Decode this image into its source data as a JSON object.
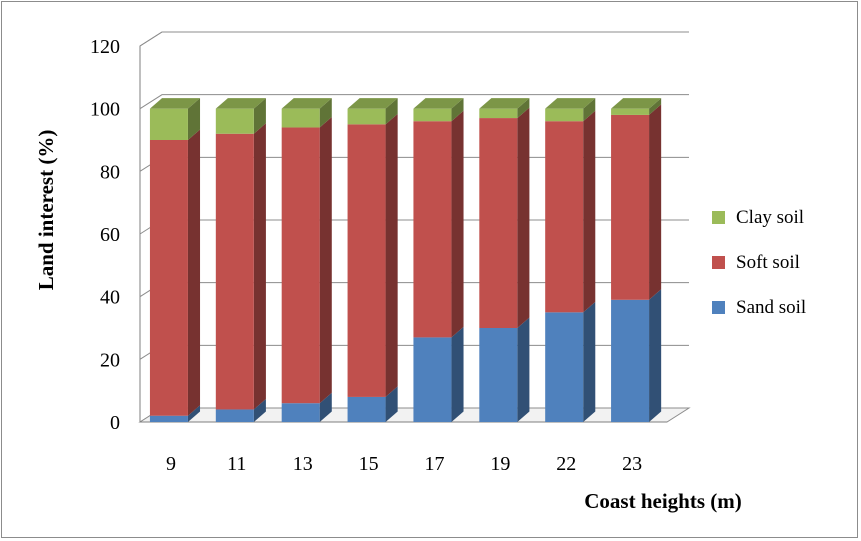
{
  "chart_data": {
    "type": "bar",
    "stacked": true,
    "three_d": true,
    "categories": [
      "9",
      "11",
      "13",
      "15",
      "17",
      "19",
      "22",
      "23"
    ],
    "series": [
      {
        "name": "Sand soil",
        "color": "#4F81BD",
        "values": [
          2,
          4,
          6,
          8,
          27,
          30,
          35,
          39
        ]
      },
      {
        "name": "Soft soil",
        "color": "#C0504D",
        "values": [
          88,
          88,
          88,
          87,
          69,
          67,
          61,
          59
        ]
      },
      {
        "name": "Clay soil",
        "color": "#9BBB59",
        "values": [
          10,
          8,
          6,
          5,
          4,
          3,
          4,
          2
        ]
      }
    ],
    "xlabel": "Coast heights (m)",
    "ylabel": "Land interest   (%)",
    "ylim": [
      0,
      120
    ],
    "yticks": [
      "0",
      "20",
      "40",
      "60",
      "80",
      "100",
      "120"
    ],
    "grid": true,
    "legend_position": "right"
  }
}
